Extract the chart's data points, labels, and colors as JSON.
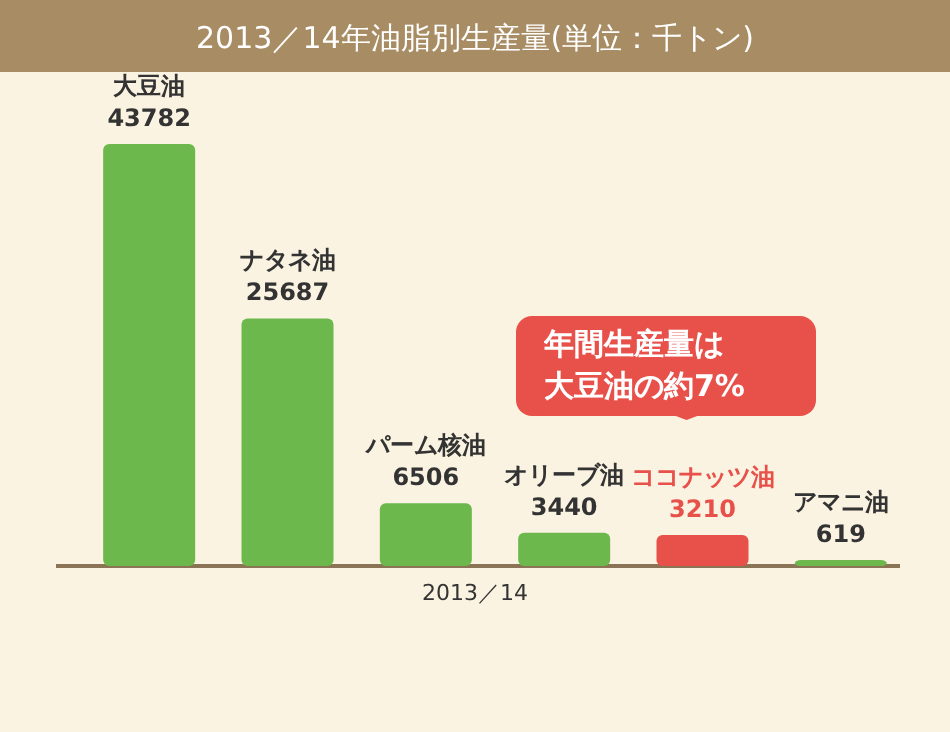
{
  "chart_data": {
    "type": "bar",
    "title": "2013／14年油脂別生産量(単位：千トン)",
    "xlabel": "2013／14",
    "categories": [
      "大豆油",
      "ナタネ油",
      "パーム核油",
      "オリーブ油",
      "ココナッツ油",
      "アマニ油"
    ],
    "values": [
      43782,
      25687,
      6506,
      3440,
      3210,
      619
    ],
    "color": "#6cb84d",
    "colors": [
      "#6cb84d",
      "#6cb84d",
      "#6cb84d",
      "#6cb84d",
      "#e8504a",
      "#6cb84d"
    ],
    "data_labels": true,
    "annotations": [
      "年間生産量は大豆油の約7%"
    ]
  }
}
